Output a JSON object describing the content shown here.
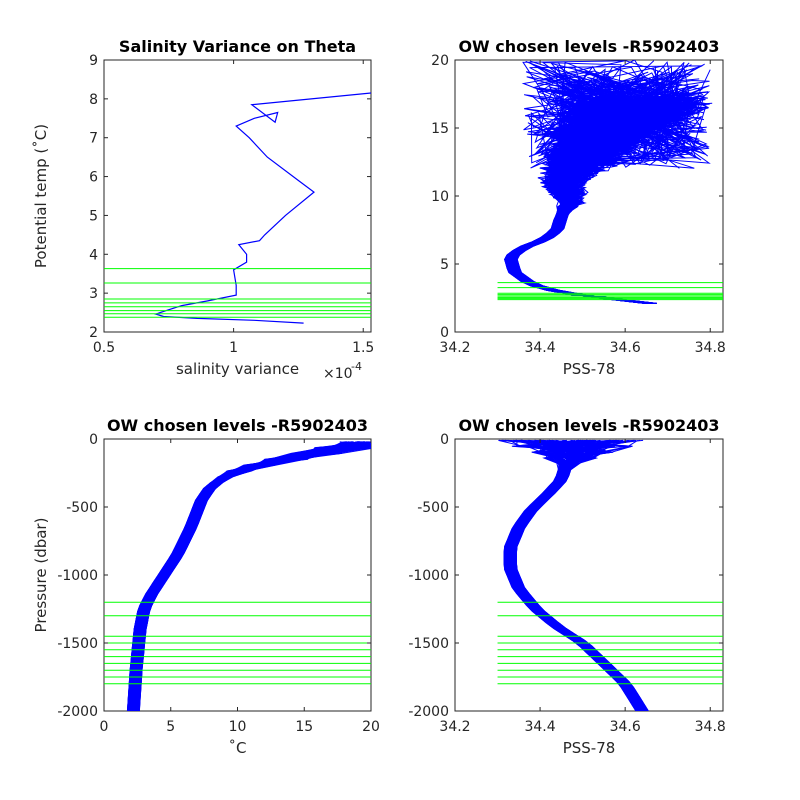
{
  "chart_data": [
    {
      "type": "line",
      "title": "Salinity Variance on Theta",
      "xlabel": "salinity variance",
      "x_exponent_label": "×10",
      "x_exponent_power": "-4",
      "ylabel": "Potential temp (˚C)",
      "xlim": [
        0.5,
        1.53
      ],
      "ylim": [
        2,
        9
      ],
      "xticks": [
        0.5,
        1,
        1.5
      ],
      "xtick_labels": [
        "0.5",
        "1",
        "1.5"
      ],
      "yticks": [
        2,
        3,
        4,
        5,
        6,
        7,
        8,
        9
      ],
      "ytick_labels": [
        "2",
        "3",
        "4",
        "5",
        "6",
        "7",
        "8",
        "9"
      ],
      "colors": {
        "profile": "#0000ff",
        "levels": "#00ff00"
      },
      "series": [
        {
          "x": [
            1.27,
            1.08,
            0.86,
            0.73,
            0.7,
            0.74,
            0.8,
            0.9,
            1.01,
            1.01,
            1.0,
            1.05,
            1.05,
            1.02,
            1.1,
            1.12,
            1.2,
            1.31,
            1.25,
            1.13,
            1.06,
            1.01,
            1.08,
            1.17,
            1.16,
            1.07,
            1.53
          ],
          "y": [
            2.23,
            2.3,
            2.35,
            2.4,
            2.46,
            2.55,
            2.68,
            2.8,
            2.95,
            3.2,
            3.6,
            3.8,
            4.0,
            4.25,
            4.35,
            4.5,
            5.0,
            5.6,
            5.9,
            6.5,
            7.0,
            7.3,
            7.5,
            7.65,
            7.4,
            7.85,
            8.15
          ]
        }
      ],
      "levels": [
        3.63,
        3.26,
        2.85,
        2.75,
        2.65,
        2.55,
        2.47,
        2.38
      ]
    },
    {
      "type": "line",
      "title": "OW chosen levels -R5902403",
      "xlabel": "PSS-78",
      "ylabel": "",
      "xlim": [
        34.2,
        34.83
      ],
      "ylim": [
        0,
        20
      ],
      "xticks": [
        34.2,
        34.4,
        34.6,
        34.8
      ],
      "xtick_labels": [
        "34.2",
        "34.4",
        "34.6",
        "34.8"
      ],
      "yticks": [
        0,
        5,
        10,
        15,
        20
      ],
      "ytick_labels": [
        "0",
        "5",
        "10",
        "15",
        "20"
      ],
      "colors": {
        "profile": "#0000ff",
        "levels": "#00ff00"
      },
      "series": [
        {
          "x": [
            34.66,
            34.55,
            34.45,
            34.38,
            34.34,
            34.33,
            34.36,
            34.41,
            34.44,
            34.45,
            34.47,
            34.45,
            34.5,
            34.55,
            34.62
          ],
          "y": [
            2.1,
            2.5,
            2.9,
            3.5,
            4.4,
            5.5,
            6.2,
            6.8,
            7.5,
            8.5,
            9.5,
            11.0,
            13.0,
            15.0,
            17.0
          ]
        }
      ],
      "levels": [
        3.63,
        3.26,
        2.85,
        2.75,
        2.65,
        2.55,
        2.47,
        2.38
      ],
      "level_x_range": [
        34.3,
        34.83
      ]
    },
    {
      "type": "line",
      "title": "OW chosen levels -R5902403",
      "xlabel": "˚C",
      "ylabel": "Pressure (dbar)",
      "xlim": [
        0,
        20
      ],
      "ylim": [
        -2000,
        0
      ],
      "xticks": [
        0,
        5,
        10,
        15,
        20
      ],
      "xtick_labels": [
        "0",
        "5",
        "10",
        "15",
        "20"
      ],
      "yticks": [
        -2000,
        -1500,
        -1000,
        -500,
        0
      ],
      "ytick_labels": [
        "-2000",
        "-1500",
        "-1000",
        "-500",
        "0"
      ],
      "colors": {
        "profile": "#0000ff",
        "levels": "#00ff00"
      },
      "series": [
        {
          "x": [
            2.2,
            2.4,
            2.7,
            3.0,
            3.5,
            4.5,
            5.5,
            6.5,
            7.3,
            8.0,
            9.5,
            12.0,
            15.0,
            18.0,
            20.0
          ],
          "y": [
            -2000,
            -1700,
            -1400,
            -1250,
            -1150,
            -1000,
            -850,
            -650,
            -450,
            -350,
            -250,
            -180,
            -120,
            -60,
            -20
          ]
        }
      ],
      "levels": [
        -1200,
        -1300,
        -1450,
        -1500,
        -1550,
        -1600,
        -1650,
        -1700,
        -1750,
        -1800
      ],
      "level_x_range": [
        0,
        20
      ]
    },
    {
      "type": "line",
      "title": "OW chosen levels -R5902403",
      "xlabel": "PSS-78",
      "ylabel": "",
      "xlim": [
        34.2,
        34.83
      ],
      "ylim": [
        -2000,
        0
      ],
      "xticks": [
        34.2,
        34.4,
        34.6,
        34.8
      ],
      "xtick_labels": [
        "34.2",
        "34.4",
        "34.6",
        "34.8"
      ],
      "yticks": [
        -2000,
        -1500,
        -1000,
        -500,
        0
      ],
      "ytick_labels": [
        "-2000",
        "-1500",
        "-1000",
        "-500",
        "0"
      ],
      "colors": {
        "profile": "#0000ff",
        "levels": "#00ff00"
      },
      "series": [
        {
          "x": [
            34.64,
            34.6,
            34.55,
            34.5,
            34.44,
            34.39,
            34.35,
            34.33,
            34.33,
            34.35,
            34.38,
            34.42,
            34.45,
            34.46,
            34.47,
            34.45
          ],
          "y": [
            -2000,
            -1800,
            -1650,
            -1500,
            -1380,
            -1250,
            -1100,
            -950,
            -800,
            -650,
            -520,
            -400,
            -300,
            -200,
            -100,
            -10
          ]
        }
      ],
      "levels": [
        -1200,
        -1300,
        -1450,
        -1500,
        -1550,
        -1600,
        -1650,
        -1700,
        -1750,
        -1800
      ],
      "level_x_range": [
        34.3,
        34.83
      ]
    }
  ]
}
